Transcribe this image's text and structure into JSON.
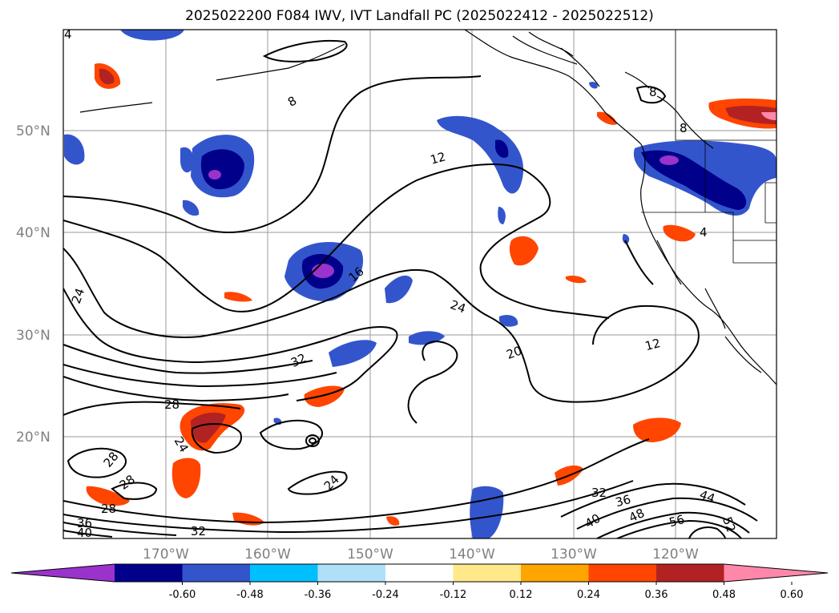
{
  "title": "2025022200 F084 IWV, IVT Landfall PC (2025022412 - 2025022512)",
  "map": {
    "lat_labels": [
      "50°N",
      "40°N",
      "30°N",
      "20°N"
    ],
    "lon_labels": [
      "170°W",
      "160°W",
      "150°W",
      "140°W",
      "130°W",
      "120°W"
    ],
    "contour_labels": [
      "4",
      "8",
      "8",
      "8",
      "4",
      "12",
      "16",
      "24",
      "24",
      "32",
      "20",
      "12",
      "28",
      "28",
      "28",
      "28",
      "24",
      "24",
      "32",
      "36",
      "40",
      "32",
      "36",
      "40",
      "48",
      "56",
      "44",
      "52"
    ]
  },
  "colorbar": {
    "colors": [
      "#9933cc",
      "#00008b",
      "#3355cc",
      "#00bfff",
      "#aee0fa",
      "#ffffff",
      "#ffe98a",
      "#ffa500",
      "#ff4500",
      "#b22222",
      "#ff88aa"
    ],
    "tick_labels": [
      "-0.60",
      "-0.48",
      "-0.36",
      "-0.24",
      "-0.12",
      "0.12",
      "0.24",
      "0.36",
      "0.48",
      "0.60"
    ]
  }
}
